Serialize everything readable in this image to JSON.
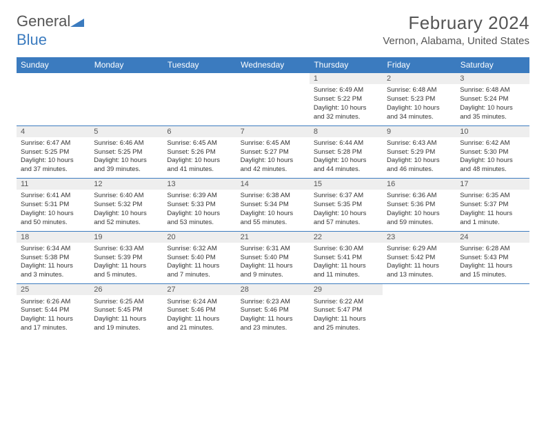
{
  "brand": {
    "name_part1": "General",
    "name_part2": "Blue"
  },
  "title": "February 2024",
  "location": "Vernon, Alabama, United States",
  "colors": {
    "header_bg": "#3b7bbf",
    "header_text": "#ffffff",
    "daynum_bg": "#eeeeee",
    "text": "#333333",
    "rule": "#3b7bbf"
  },
  "weekdays": [
    "Sunday",
    "Monday",
    "Tuesday",
    "Wednesday",
    "Thursday",
    "Friday",
    "Saturday"
  ],
  "weeks": [
    [
      {
        "day": "",
        "details": ""
      },
      {
        "day": "",
        "details": ""
      },
      {
        "day": "",
        "details": ""
      },
      {
        "day": "",
        "details": ""
      },
      {
        "day": "1",
        "details": "Sunrise: 6:49 AM\nSunset: 5:22 PM\nDaylight: 10 hours and 32 minutes."
      },
      {
        "day": "2",
        "details": "Sunrise: 6:48 AM\nSunset: 5:23 PM\nDaylight: 10 hours and 34 minutes."
      },
      {
        "day": "3",
        "details": "Sunrise: 6:48 AM\nSunset: 5:24 PM\nDaylight: 10 hours and 35 minutes."
      }
    ],
    [
      {
        "day": "4",
        "details": "Sunrise: 6:47 AM\nSunset: 5:25 PM\nDaylight: 10 hours and 37 minutes."
      },
      {
        "day": "5",
        "details": "Sunrise: 6:46 AM\nSunset: 5:25 PM\nDaylight: 10 hours and 39 minutes."
      },
      {
        "day": "6",
        "details": "Sunrise: 6:45 AM\nSunset: 5:26 PM\nDaylight: 10 hours and 41 minutes."
      },
      {
        "day": "7",
        "details": "Sunrise: 6:45 AM\nSunset: 5:27 PM\nDaylight: 10 hours and 42 minutes."
      },
      {
        "day": "8",
        "details": "Sunrise: 6:44 AM\nSunset: 5:28 PM\nDaylight: 10 hours and 44 minutes."
      },
      {
        "day": "9",
        "details": "Sunrise: 6:43 AM\nSunset: 5:29 PM\nDaylight: 10 hours and 46 minutes."
      },
      {
        "day": "10",
        "details": "Sunrise: 6:42 AM\nSunset: 5:30 PM\nDaylight: 10 hours and 48 minutes."
      }
    ],
    [
      {
        "day": "11",
        "details": "Sunrise: 6:41 AM\nSunset: 5:31 PM\nDaylight: 10 hours and 50 minutes."
      },
      {
        "day": "12",
        "details": "Sunrise: 6:40 AM\nSunset: 5:32 PM\nDaylight: 10 hours and 52 minutes."
      },
      {
        "day": "13",
        "details": "Sunrise: 6:39 AM\nSunset: 5:33 PM\nDaylight: 10 hours and 53 minutes."
      },
      {
        "day": "14",
        "details": "Sunrise: 6:38 AM\nSunset: 5:34 PM\nDaylight: 10 hours and 55 minutes."
      },
      {
        "day": "15",
        "details": "Sunrise: 6:37 AM\nSunset: 5:35 PM\nDaylight: 10 hours and 57 minutes."
      },
      {
        "day": "16",
        "details": "Sunrise: 6:36 AM\nSunset: 5:36 PM\nDaylight: 10 hours and 59 minutes."
      },
      {
        "day": "17",
        "details": "Sunrise: 6:35 AM\nSunset: 5:37 PM\nDaylight: 11 hours and 1 minute."
      }
    ],
    [
      {
        "day": "18",
        "details": "Sunrise: 6:34 AM\nSunset: 5:38 PM\nDaylight: 11 hours and 3 minutes."
      },
      {
        "day": "19",
        "details": "Sunrise: 6:33 AM\nSunset: 5:39 PM\nDaylight: 11 hours and 5 minutes."
      },
      {
        "day": "20",
        "details": "Sunrise: 6:32 AM\nSunset: 5:40 PM\nDaylight: 11 hours and 7 minutes."
      },
      {
        "day": "21",
        "details": "Sunrise: 6:31 AM\nSunset: 5:40 PM\nDaylight: 11 hours and 9 minutes."
      },
      {
        "day": "22",
        "details": "Sunrise: 6:30 AM\nSunset: 5:41 PM\nDaylight: 11 hours and 11 minutes."
      },
      {
        "day": "23",
        "details": "Sunrise: 6:29 AM\nSunset: 5:42 PM\nDaylight: 11 hours and 13 minutes."
      },
      {
        "day": "24",
        "details": "Sunrise: 6:28 AM\nSunset: 5:43 PM\nDaylight: 11 hours and 15 minutes."
      }
    ],
    [
      {
        "day": "25",
        "details": "Sunrise: 6:26 AM\nSunset: 5:44 PM\nDaylight: 11 hours and 17 minutes."
      },
      {
        "day": "26",
        "details": "Sunrise: 6:25 AM\nSunset: 5:45 PM\nDaylight: 11 hours and 19 minutes."
      },
      {
        "day": "27",
        "details": "Sunrise: 6:24 AM\nSunset: 5:46 PM\nDaylight: 11 hours and 21 minutes."
      },
      {
        "day": "28",
        "details": "Sunrise: 6:23 AM\nSunset: 5:46 PM\nDaylight: 11 hours and 23 minutes."
      },
      {
        "day": "29",
        "details": "Sunrise: 6:22 AM\nSunset: 5:47 PM\nDaylight: 11 hours and 25 minutes."
      },
      {
        "day": "",
        "details": ""
      },
      {
        "day": "",
        "details": ""
      }
    ]
  ]
}
